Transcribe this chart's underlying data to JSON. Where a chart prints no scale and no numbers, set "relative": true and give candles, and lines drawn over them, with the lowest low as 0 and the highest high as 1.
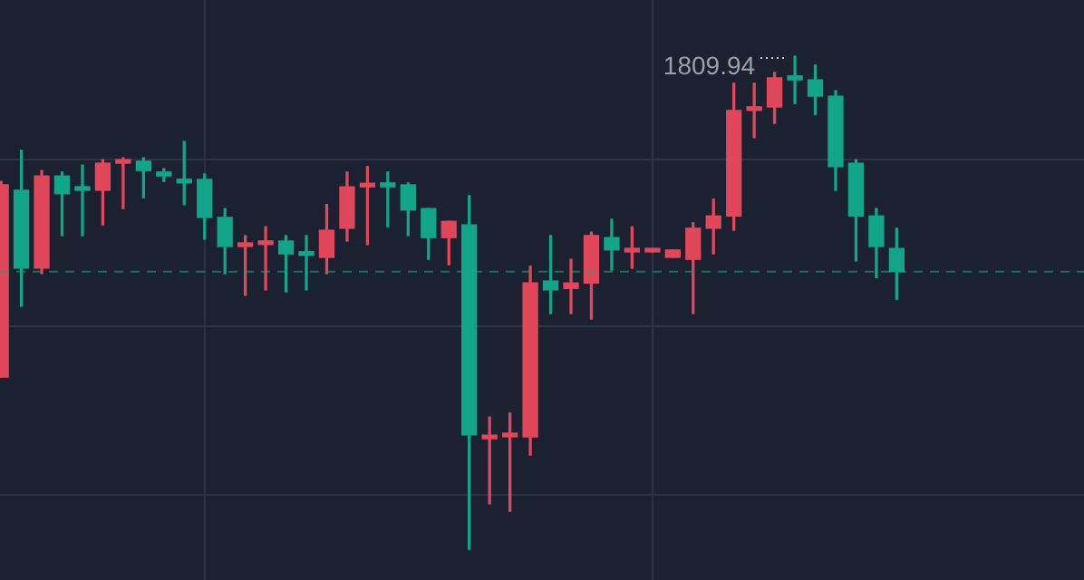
{
  "chart_data": {
    "type": "candlestick",
    "relative": true,
    "categories": [
      null,
      null,
      null,
      null,
      null,
      null,
      null,
      null,
      null,
      null,
      null,
      null,
      null,
      null,
      null,
      null,
      null,
      null,
      null,
      null,
      null,
      null,
      null,
      null,
      null,
      null,
      null,
      null,
      null,
      null,
      null,
      null,
      null,
      null,
      null,
      null,
      null,
      null,
      null,
      null,
      null,
      null,
      null,
      null,
      null
    ],
    "ohlc": [
      [
        0.349,
        0.746,
        0.349,
        0.739
      ],
      [
        0.728,
        0.809,
        0.493,
        0.57
      ],
      [
        0.57,
        0.768,
        0.559,
        0.757
      ],
      [
        0.757,
        0.765,
        0.636,
        0.721
      ],
      [
        0.735,
        0.779,
        0.636,
        0.728
      ],
      [
        0.728,
        0.79,
        0.658,
        0.783
      ],
      [
        0.783,
        0.794,
        0.691,
        0.787
      ],
      [
        0.787,
        0.794,
        0.713,
        0.768
      ],
      [
        0.765,
        0.772,
        0.746,
        0.757
      ],
      [
        0.75,
        0.827,
        0.699,
        0.743
      ],
      [
        0.75,
        0.761,
        0.629,
        0.673
      ],
      [
        0.673,
        0.691,
        0.559,
        0.614
      ],
      [
        0.614,
        0.636,
        0.515,
        0.618
      ],
      [
        0.618,
        0.654,
        0.526,
        0.621
      ],
      [
        0.625,
        0.636,
        0.522,
        0.599
      ],
      [
        0.599,
        0.636,
        0.526,
        0.596
      ],
      [
        0.592,
        0.699,
        0.559,
        0.647
      ],
      [
        0.651,
        0.765,
        0.625,
        0.735
      ],
      [
        0.735,
        0.776,
        0.618,
        0.739
      ],
      [
        0.743,
        0.765,
        0.654,
        0.735
      ],
      [
        0.739,
        0.743,
        0.636,
        0.688
      ],
      [
        0.691,
        0.691,
        0.588,
        0.632
      ],
      [
        0.632,
        0.665,
        0.577,
        0.665
      ],
      [
        0.658,
        0.717,
        0.0,
        0.232
      ],
      [
        0.224,
        0.268,
        0.092,
        0.228
      ],
      [
        0.228,
        0.276,
        0.077,
        0.232
      ],
      [
        0.228,
        0.574,
        0.191,
        0.54
      ],
      [
        0.544,
        0.636,
        0.478,
        0.526
      ],
      [
        0.529,
        0.588,
        0.478,
        0.54
      ],
      [
        0.54,
        0.643,
        0.467,
        0.636
      ],
      [
        0.632,
        0.669,
        0.566,
        0.607
      ],
      [
        0.603,
        0.654,
        0.57,
        0.607
      ],
      [
        0.603,
        0.607,
        0.603,
        0.607
      ],
      [
        0.592,
        0.607,
        0.592,
        0.607
      ],
      [
        0.588,
        0.662,
        0.478,
        0.651
      ],
      [
        0.651,
        0.71,
        0.599,
        0.676
      ],
      [
        0.676,
        0.945,
        0.647,
        0.89
      ],
      [
        0.89,
        0.945,
        0.835,
        0.893
      ],
      [
        0.897,
        0.967,
        0.864,
        0.956
      ],
      [
        0.96,
        1.0,
        0.904,
        0.952
      ],
      [
        0.952,
        0.982,
        0.882,
        0.919
      ],
      [
        0.919,
        0.93,
        0.728,
        0.776
      ],
      [
        0.783,
        0.79,
        0.585,
        0.676
      ],
      [
        0.676,
        0.691,
        0.551,
        0.614
      ],
      [
        0.61,
        0.651,
        0.507,
        0.563
      ]
    ],
    "colors": [
      "#e0475a",
      "#12a58a",
      "#e0475a",
      "#12a58a",
      "#12a58a",
      "#e0475a",
      "#e0475a",
      "#12a58a",
      "#12a58a",
      "#12a58a",
      "#12a58a",
      "#12a58a",
      "#e0475a",
      "#e0475a",
      "#12a58a",
      "#12a58a",
      "#e0475a",
      "#e0475a",
      "#e0475a",
      "#12a58a",
      "#12a58a",
      "#12a58a",
      "#e0475a",
      "#12a58a",
      "#e0475a",
      "#e0475a",
      "#e0475a",
      "#12a58a",
      "#e0475a",
      "#e0475a",
      "#12a58a",
      "#e0475a",
      "#e0475a",
      "#e0475a",
      "#e0475a",
      "#e0475a",
      "#e0475a",
      "#e0475a",
      "#e0475a",
      "#12a58a",
      "#12a58a",
      "#12a58a",
      "#12a58a",
      "#12a58a",
      "#12a58a"
    ],
    "annotations": [
      "1809.94"
    ],
    "ref_lines": [
      {
        "axis": "y",
        "value": 0.563,
        "color": "#12a58a",
        "line_style": "dashed"
      }
    ],
    "grid": true
  }
}
